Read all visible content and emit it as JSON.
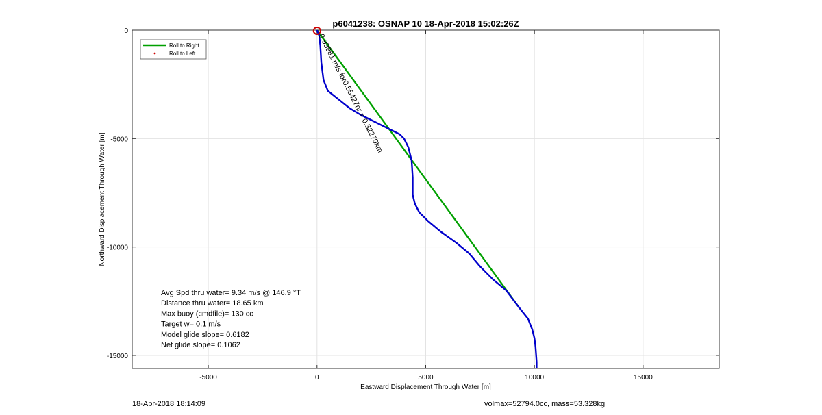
{
  "chart_data": {
    "type": "line",
    "title": "p6041238: OSNAP 10 18-Apr-2018 15:02:26Z",
    "xlabel": "Eastward Displacement Through Water [m]",
    "ylabel": "Northward Displacement Through Water [m]",
    "xlim": [
      -8500,
      18500
    ],
    "ylim": [
      -15600,
      0
    ],
    "xticks": [
      -5000,
      0,
      5000,
      10000,
      15000
    ],
    "yticks": [
      0,
      -5000,
      -10000,
      -15000
    ],
    "grid": true,
    "legend_position": "top-left",
    "legend": [
      {
        "label": "Roll to Right",
        "color": "#00a000",
        "style": "line"
      },
      {
        "label": "Roll to Left",
        "color": "#cc0000",
        "style": "dot"
      }
    ],
    "series": [
      {
        "name": "Roll to Right",
        "color": "#00a000",
        "x": [
          0,
          9300
        ],
        "y": [
          0,
          -12800
        ]
      },
      {
        "color": "#0000cc",
        "x": [
          0,
          100,
          150,
          200,
          300,
          500,
          1000,
          1500,
          2000,
          2600,
          3000,
          3400,
          3800,
          4000,
          4200,
          4350,
          4400,
          4400,
          4500,
          4700,
          5100,
          5700,
          6400,
          7000,
          7500,
          8100,
          8700,
          9300,
          9700,
          9900,
          10000,
          10050,
          10080,
          10100,
          10100
        ],
        "y": [
          0,
          -250,
          -700,
          -1500,
          -2300,
          -2800,
          -3200,
          -3600,
          -3900,
          -4200,
          -4400,
          -4600,
          -4800,
          -5000,
          -5400,
          -6000,
          -6800,
          -7600,
          -8000,
          -8400,
          -8800,
          -9300,
          -9800,
          -10300,
          -10900,
          -11500,
          -12000,
          -12800,
          -13300,
          -13800,
          -14200,
          -14600,
          -15000,
          -15300,
          -15600
        ]
      }
    ],
    "markers": [
      {
        "type": "circle",
        "x": 0,
        "y": -30,
        "color": "#cc0000"
      }
    ],
    "annotations": [
      {
        "text": "0.93981 m/s for0.55427hr = 0.32279km",
        "x": 80,
        "y": -250,
        "rotation_deg": 63
      }
    ],
    "stats": [
      "Avg Spd thru water=  9.34 m/s @ 146.9 °T",
      "Distance thru water= 18.65 km",
      "Max buoy (cmdfile)= 130 cc",
      "Target w= 0.1 m/s",
      "Model glide slope= 0.6182",
      "Net glide slope= 0.1062"
    ]
  },
  "footer": {
    "left": "18-Apr-2018 18:14:09",
    "right": "volmax=52794.0cc, mass=53.328kg"
  }
}
